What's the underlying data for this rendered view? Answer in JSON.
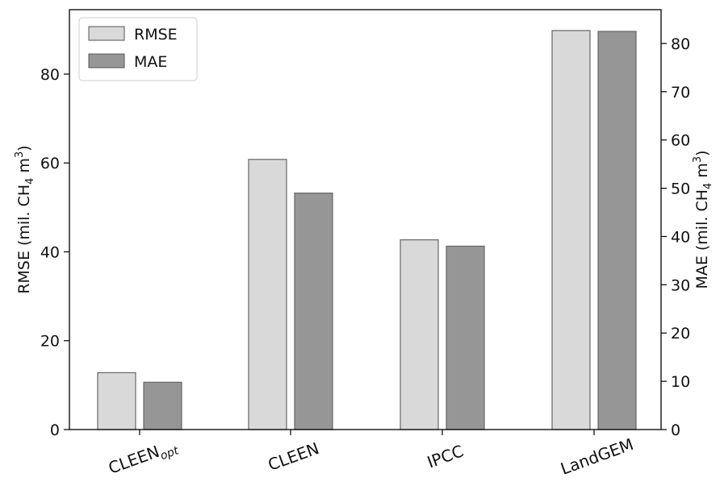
{
  "chart_data": {
    "type": "bar",
    "categories": [
      {
        "base": "CLEEN",
        "sub": "opt"
      },
      {
        "base": "CLEEN",
        "sub": ""
      },
      {
        "base": "IPCC",
        "sub": ""
      },
      {
        "base": "LandGEM",
        "sub": ""
      }
    ],
    "series": [
      {
        "name": "RMSE",
        "axis": "left",
        "values": [
          12.8,
          60.8,
          42.7,
          89.8
        ],
        "color": "#d9d9d9"
      },
      {
        "name": "MAE",
        "axis": "right",
        "values": [
          9.8,
          49.0,
          38.0,
          82.5
        ],
        "color": "#969696"
      }
    ],
    "y_left": {
      "label_parts": [
        "RMSE (mil. CH",
        "4",
        " m",
        "3",
        ")"
      ],
      "ylim": [
        0,
        94.5
      ],
      "ticks": [
        "0",
        "20",
        "40",
        "60",
        "80"
      ],
      "tick_values": [
        0,
        20,
        40,
        60,
        80
      ]
    },
    "y_right": {
      "label_parts": [
        "MAE (mil. CH",
        "4",
        " m",
        "3",
        ")"
      ],
      "ylim": [
        0,
        87
      ],
      "ticks": [
        "0",
        "10",
        "20",
        "30",
        "40",
        "50",
        "60",
        "70",
        "80"
      ],
      "tick_values": [
        0,
        10,
        20,
        30,
        40,
        50,
        60,
        70,
        80
      ]
    },
    "legend": {
      "placement": "top-left",
      "entries": [
        "RMSE",
        "MAE"
      ]
    },
    "grid": false
  }
}
